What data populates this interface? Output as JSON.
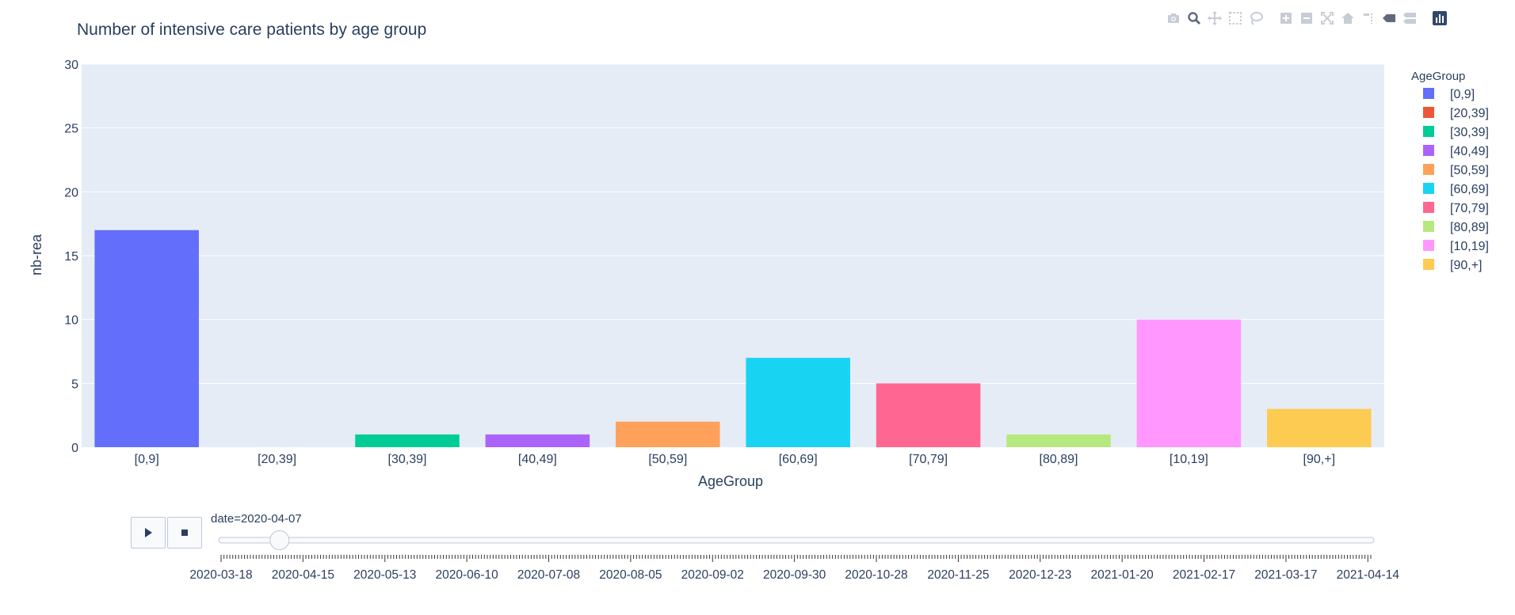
{
  "chart_data": {
    "type": "bar",
    "title": "Number of intensive care patients by age group",
    "xlabel": "AgeGroup",
    "ylabel": "nb-rea",
    "ylim": [
      0,
      30
    ],
    "yticks": [
      0,
      5,
      10,
      15,
      20,
      25,
      30
    ],
    "categories": [
      "[0,9]",
      "[20,39]",
      "[30,39]",
      "[40,49]",
      "[50,59]",
      "[60,69]",
      "[70,79]",
      "[80,89]",
      "[10,19]",
      "[90,+]"
    ],
    "values": [
      17,
      0,
      1,
      1,
      2,
      7,
      5,
      1,
      10,
      3
    ],
    "colors": [
      "#636efa",
      "#EF553B",
      "#00cc96",
      "#ab63fa",
      "#FFA15A",
      "#19d3f3",
      "#FF6692",
      "#B6E880",
      "#FF97FF",
      "#FECB52"
    ],
    "grid": true,
    "legend": {
      "title": "AgeGroup",
      "placement": "right",
      "items": [
        "[0,9]",
        "[20,39]",
        "[30,39]",
        "[40,49]",
        "[50,59]",
        "[60,69]",
        "[70,79]",
        "[80,89]",
        "[10,19]",
        "[90,+]"
      ]
    }
  },
  "slider": {
    "current_label": "date=2020-04-07",
    "tick_labels": [
      "2020-03-18",
      "2020-04-15",
      "2020-05-13",
      "2020-06-10",
      "2020-07-08",
      "2020-08-05",
      "2020-09-02",
      "2020-09-30",
      "2020-10-28",
      "2020-11-25",
      "2020-12-23",
      "2021-01-20",
      "2021-02-17",
      "2021-03-17",
      "2021-04-14"
    ],
    "minor_tick_count": 394,
    "current_index": 20
  },
  "modebar": {
    "icons": [
      "camera-icon",
      "zoom-icon",
      "pan-icon",
      "box-select-icon",
      "lasso-icon",
      "zoom-in-icon",
      "zoom-out-icon",
      "autoscale-icon",
      "reset-axes-icon",
      "spike-lines-icon",
      "hover-closest-icon",
      "hover-compare-icon",
      "plotly-logo-icon"
    ]
  },
  "controls": {
    "play": "play-icon",
    "stop": "stop-icon"
  },
  "theme": {
    "plot_bg": "#e5ecf6",
    "grid": "#ffffff",
    "text": "#2a3f5f"
  }
}
